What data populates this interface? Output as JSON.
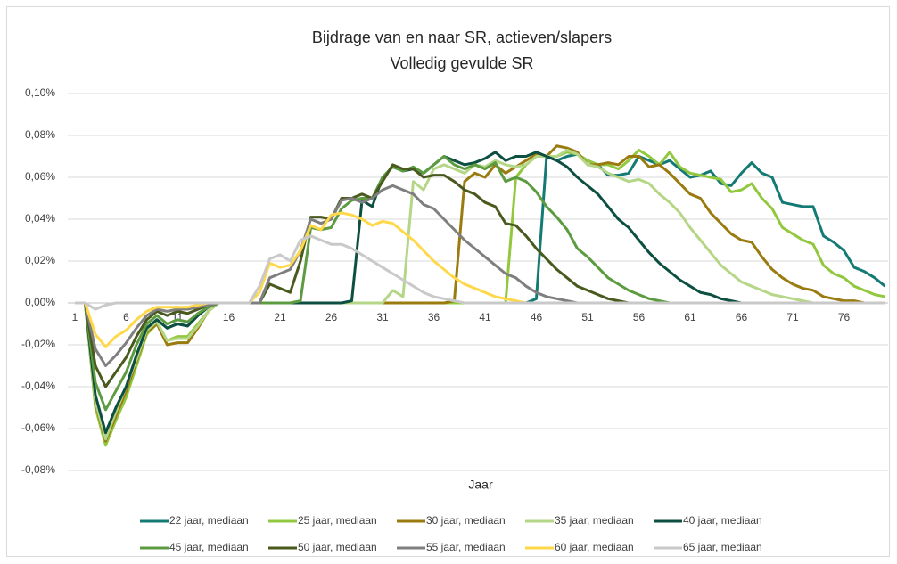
{
  "chart_data": {
    "type": "line",
    "title": "Bijdrage van en naar SR, actieven/slapers",
    "subtitle": "Volledig gevulde SR",
    "x_label": "Jaar",
    "legend": "bottom",
    "grid": true,
    "categories": [
      1,
      null,
      null,
      null,
      null,
      6,
      null,
      null,
      null,
      null,
      11,
      null,
      null,
      null,
      null,
      16,
      null,
      null,
      null,
      null,
      21,
      null,
      null,
      null,
      null,
      26,
      null,
      null,
      null,
      null,
      31,
      null,
      null,
      null,
      null,
      36,
      null,
      null,
      null,
      null,
      41,
      null,
      null,
      null,
      null,
      46,
      null,
      null,
      null,
      null,
      51,
      null,
      null,
      null,
      null,
      56,
      null,
      null,
      null,
      null,
      61,
      null,
      null,
      null,
      null,
      66,
      null,
      null,
      null,
      null,
      71,
      null,
      null,
      null,
      null,
      76,
      null,
      null,
      null,
      null
    ],
    "ylim": [
      -0.08,
      0.1
    ],
    "yticks": [
      {
        "value": -0.08,
        "label": "-0,08%"
      },
      {
        "value": -0.06,
        "label": "-0,06%"
      },
      {
        "value": -0.04,
        "label": "-0,04%"
      },
      {
        "value": -0.02,
        "label": "-0,02%"
      },
      {
        "value": 0,
        "label": "0,00%"
      },
      {
        "value": 0.02,
        "label": "0,02%"
      },
      {
        "value": 0.04,
        "label": "0,04%"
      },
      {
        "value": 0.06,
        "label": "0,06%"
      },
      {
        "value": 0.08,
        "label": "0,08%"
      },
      {
        "value": 0.1,
        "label": "0,10%"
      }
    ],
    "series": [
      {
        "name": "22 jaar, mediaan",
        "color": "#147a74",
        "values": [
          0,
          0,
          -0.045,
          -0.062,
          -0.05,
          -0.04,
          -0.025,
          -0.012,
          -0.008,
          -0.012,
          -0.01,
          -0.011,
          -0.006,
          -0.002,
          0,
          0,
          0,
          0,
          0,
          0,
          0,
          0,
          0,
          0,
          0,
          0,
          0,
          0,
          0,
          0,
          0,
          0,
          0,
          0,
          0,
          0,
          0,
          0,
          0,
          0,
          0,
          0,
          0,
          0,
          0,
          0.002,
          0.07,
          0.068,
          0.07,
          0.071,
          0.068,
          0.066,
          0.061,
          0.061,
          0.062,
          0.07,
          0.068,
          0.066,
          0.068,
          0.064,
          0.06,
          0.061,
          0.063,
          0.057,
          0.056,
          0.062,
          0.067,
          0.062,
          0.06,
          0.048,
          0.047,
          0.046,
          0.046,
          0.032,
          0.029,
          0.025,
          0.017,
          0.015,
          0.012,
          0.008
        ]
      },
      {
        "name": "25 jaar, mediaan",
        "color": "#92c83e",
        "values": [
          0,
          0,
          -0.05,
          -0.068,
          -0.056,
          -0.045,
          -0.03,
          -0.015,
          -0.01,
          -0.018,
          -0.016,
          -0.016,
          -0.01,
          -0.004,
          0,
          0,
          0,
          0,
          0,
          0,
          0,
          0,
          0,
          0,
          0,
          0,
          0,
          0,
          0,
          0,
          0,
          0,
          0,
          0,
          0,
          0,
          0,
          0,
          0,
          0,
          0,
          0,
          0,
          0.06,
          0.066,
          0.07,
          0.07,
          0.07,
          0.072,
          0.071,
          0.068,
          0.066,
          0.066,
          0.064,
          0.068,
          0.073,
          0.07,
          0.066,
          0.072,
          0.065,
          0.062,
          0.061,
          0.06,
          0.059,
          0.053,
          0.054,
          0.057,
          0.05,
          0.045,
          0.036,
          0.033,
          0.03,
          0.028,
          0.018,
          0.014,
          0.012,
          0.008,
          0.006,
          0.004,
          0.003
        ]
      },
      {
        "name": "30 jaar, mediaan",
        "color": "#9a7b0f",
        "values": [
          0,
          0,
          -0.048,
          -0.066,
          -0.054,
          -0.042,
          -0.028,
          -0.014,
          -0.01,
          -0.02,
          -0.019,
          -0.019,
          -0.012,
          -0.004,
          0,
          0,
          0,
          0,
          0,
          0,
          0,
          0,
          0,
          0,
          0,
          0,
          0,
          0,
          0,
          0,
          0,
          0,
          0,
          0,
          0,
          0,
          0,
          0.001,
          0.058,
          0.062,
          0.06,
          0.066,
          0.062,
          0.065,
          0.068,
          0.071,
          0.07,
          0.075,
          0.074,
          0.072,
          0.066,
          0.066,
          0.067,
          0.066,
          0.07,
          0.07,
          0.065,
          0.066,
          0.062,
          0.057,
          0.052,
          0.05,
          0.043,
          0.038,
          0.033,
          0.03,
          0.029,
          0.022,
          0.016,
          0.012,
          0.009,
          0.007,
          0.006,
          0.003,
          0.002,
          0.001,
          0.001,
          0,
          0,
          0
        ]
      },
      {
        "name": "35 jaar, mediaan",
        "color": "#b5d686",
        "values": [
          0,
          0,
          -0.047,
          -0.065,
          -0.052,
          -0.04,
          -0.027,
          -0.013,
          -0.009,
          -0.018,
          -0.017,
          -0.017,
          -0.011,
          -0.004,
          0,
          0,
          0,
          0,
          0,
          0,
          0,
          0,
          0,
          0,
          0,
          0,
          0,
          0,
          0,
          0,
          0,
          0.006,
          0.003,
          0.058,
          0.054,
          0.064,
          0.066,
          0.064,
          0.062,
          0.066,
          0.065,
          0.068,
          0.066,
          0.065,
          0.066,
          0.07,
          0.07,
          0.07,
          0.073,
          0.071,
          0.066,
          0.065,
          0.062,
          0.06,
          0.058,
          0.059,
          0.057,
          0.052,
          0.048,
          0.043,
          0.036,
          0.03,
          0.024,
          0.018,
          0.014,
          0.01,
          0.008,
          0.006,
          0.004,
          0.003,
          0.002,
          0.001,
          0,
          0,
          0,
          0,
          0,
          0,
          0,
          0
        ]
      },
      {
        "name": "40 jaar, mediaan",
        "color": "#0d4f40",
        "values": [
          0,
          0,
          -0.044,
          -0.062,
          -0.05,
          -0.04,
          -0.025,
          -0.012,
          -0.008,
          -0.012,
          -0.01,
          -0.011,
          -0.006,
          -0.002,
          0,
          0,
          0,
          0,
          0,
          0,
          0,
          0,
          0,
          0,
          0,
          0,
          0,
          0.001,
          0.049,
          0.046,
          0.06,
          0.065,
          0.063,
          0.064,
          0.062,
          0.066,
          0.07,
          0.068,
          0.066,
          0.067,
          0.069,
          0.072,
          0.068,
          0.07,
          0.07,
          0.072,
          0.07,
          0.068,
          0.065,
          0.06,
          0.056,
          0.052,
          0.046,
          0.04,
          0.036,
          0.03,
          0.024,
          0.019,
          0.015,
          0.011,
          0.008,
          0.005,
          0.004,
          0.002,
          0.001,
          0,
          0,
          0,
          0,
          0,
          0,
          0,
          0,
          0,
          0,
          0,
          0,
          0,
          0,
          0
        ]
      },
      {
        "name": "45 jaar, mediaan",
        "color": "#5c9b40",
        "values": [
          0,
          0,
          -0.038,
          -0.051,
          -0.042,
          -0.033,
          -0.02,
          -0.01,
          -0.006,
          -0.01,
          -0.008,
          -0.009,
          -0.005,
          -0.002,
          0,
          0,
          0,
          0,
          0,
          0,
          0,
          0,
          0.001,
          0.036,
          0.035,
          0.036,
          0.045,
          0.049,
          0.05,
          0.05,
          0.06,
          0.065,
          0.063,
          0.065,
          0.062,
          0.066,
          0.07,
          0.066,
          0.064,
          0.066,
          0.064,
          0.067,
          0.058,
          0.06,
          0.058,
          0.053,
          0.046,
          0.041,
          0.035,
          0.026,
          0.022,
          0.017,
          0.012,
          0.009,
          0.006,
          0.004,
          0.002,
          0.001,
          0,
          0,
          0,
          0,
          0,
          0,
          0,
          0,
          0,
          0,
          0,
          0,
          0,
          0,
          0,
          0,
          0,
          0,
          0,
          0,
          0,
          0
        ]
      },
      {
        "name": "50 jaar, mediaan",
        "color": "#4a5a1e",
        "values": [
          0,
          0,
          -0.03,
          -0.04,
          -0.033,
          -0.026,
          -0.016,
          -0.008,
          -0.004,
          -0.006,
          -0.004,
          -0.005,
          -0.003,
          -0.001,
          0,
          0,
          0,
          0,
          0,
          0.009,
          0.007,
          0.005,
          0.02,
          0.041,
          0.041,
          0.04,
          0.05,
          0.05,
          0.052,
          0.05,
          0.058,
          0.066,
          0.064,
          0.064,
          0.06,
          0.061,
          0.061,
          0.058,
          0.054,
          0.052,
          0.048,
          0.046,
          0.038,
          0.037,
          0.032,
          0.026,
          0.021,
          0.016,
          0.012,
          0.008,
          0.006,
          0.004,
          0.002,
          0.001,
          0,
          0,
          0,
          0,
          0,
          0,
          0,
          0,
          0,
          0,
          0,
          0,
          0,
          0,
          0,
          0,
          0,
          0,
          0,
          0,
          0,
          0,
          0,
          0,
          0,
          0
        ]
      },
      {
        "name": "55 jaar, mediaan",
        "color": "#7f7f7f",
        "values": [
          0,
          0,
          -0.022,
          -0.03,
          -0.025,
          -0.019,
          -0.012,
          -0.006,
          -0.003,
          -0.004,
          -0.003,
          -0.003,
          -0.002,
          -0.001,
          0,
          0,
          0,
          0,
          0,
          0.012,
          0.014,
          0.016,
          0.025,
          0.04,
          0.038,
          0.04,
          0.049,
          0.05,
          0.048,
          0.05,
          0.054,
          0.056,
          0.054,
          0.052,
          0.047,
          0.045,
          0.04,
          0.035,
          0.03,
          0.026,
          0.022,
          0.018,
          0.014,
          0.012,
          0.008,
          0.005,
          0.003,
          0.002,
          0.001,
          0,
          0,
          0,
          0,
          0,
          0,
          0,
          0,
          0,
          0,
          0,
          0,
          0,
          0,
          0,
          0,
          0,
          0,
          0,
          0,
          0,
          0,
          0,
          0,
          0,
          0,
          0,
          0,
          0,
          0,
          0
        ]
      },
      {
        "name": "60 jaar, mediaan",
        "color": "#ffd84a",
        "values": [
          0,
          0,
          -0.015,
          -0.021,
          -0.016,
          -0.013,
          -0.008,
          -0.004,
          -0.002,
          -0.002,
          -0.002,
          -0.002,
          -0.001,
          0,
          0,
          0,
          0,
          0,
          0.005,
          0.019,
          0.017,
          0.018,
          0.025,
          0.037,
          0.035,
          0.042,
          0.043,
          0.042,
          0.04,
          0.037,
          0.039,
          0.038,
          0.034,
          0.03,
          0.025,
          0.02,
          0.016,
          0.012,
          0.009,
          0.007,
          0.005,
          0.003,
          0.002,
          0.001,
          0,
          0,
          0,
          0,
          0,
          0,
          0,
          0,
          0,
          0,
          0,
          0,
          0,
          0,
          0,
          0,
          0,
          0,
          0,
          0,
          0,
          0,
          0,
          0,
          0,
          0,
          0,
          0,
          0,
          0,
          0,
          0,
          0,
          0,
          0,
          0
        ]
      },
      {
        "name": "65 jaar, mediaan",
        "color": "#c9c9c9",
        "values": [
          0,
          0,
          -0.003,
          -0.001,
          0,
          0,
          0,
          0,
          0,
          0,
          0,
          0,
          0,
          0,
          0,
          0,
          0,
          0,
          0.008,
          0.021,
          0.023,
          0.02,
          0.03,
          0.032,
          0.03,
          0.028,
          0.028,
          0.026,
          0.023,
          0.02,
          0.017,
          0.014,
          0.011,
          0.008,
          0.005,
          0.003,
          0.002,
          0.001,
          0,
          0,
          0,
          0,
          0,
          0,
          0,
          0,
          0,
          0,
          0,
          0,
          0,
          0,
          0,
          0,
          0,
          0,
          0,
          0,
          0,
          0,
          0,
          0,
          0,
          0,
          0,
          0,
          0,
          0,
          0,
          0,
          0,
          0,
          0,
          0,
          0,
          0,
          0,
          0,
          0,
          0
        ]
      }
    ]
  }
}
